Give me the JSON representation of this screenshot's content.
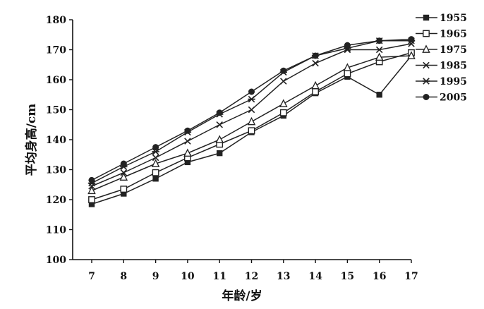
{
  "chart_data": {
    "type": "line",
    "title": "",
    "xlabel": "年龄/岁",
    "ylabel": "平均身高/cm",
    "x": [
      7,
      8,
      9,
      10,
      11,
      12,
      13,
      14,
      15,
      16,
      17
    ],
    "xlim": [
      7,
      17
    ],
    "ylim": [
      100,
      180
    ],
    "yticks": [
      100,
      110,
      120,
      130,
      140,
      150,
      160,
      170,
      180
    ],
    "grid": false,
    "legend_position": "right",
    "series": [
      {
        "name": "1955",
        "marker": "filled-square",
        "color": "#222222",
        "values": [
          118.5,
          122,
          127,
          132.5,
          135.5,
          142.5,
          148,
          155.5,
          161,
          155,
          168
        ]
      },
      {
        "name": "1965",
        "marker": "open-square",
        "color": "#222222",
        "values": [
          120,
          123.5,
          129,
          134,
          138.5,
          143,
          149,
          156,
          162,
          166,
          169
        ]
      },
      {
        "name": "1975",
        "marker": "open-triangle",
        "color": "#222222",
        "values": [
          123,
          127.5,
          132,
          135.5,
          140,
          146,
          152,
          158,
          164,
          167.5,
          168
        ]
      },
      {
        "name": "1985",
        "marker": "x",
        "color": "#222222",
        "values": [
          124.5,
          129,
          134,
          139.5,
          145,
          150,
          159.5,
          165.5,
          170,
          170,
          172
        ]
      },
      {
        "name": "1995",
        "marker": "star",
        "color": "#222222",
        "values": [
          125.5,
          131,
          136,
          142.5,
          148.5,
          153.5,
          162.5,
          168,
          170.5,
          173,
          173
        ]
      },
      {
        "name": "2005",
        "marker": "filled-circle",
        "color": "#222222",
        "values": [
          126.5,
          132,
          137.5,
          143,
          149,
          156,
          163,
          168,
          171.5,
          173,
          173.5
        ]
      }
    ]
  }
}
